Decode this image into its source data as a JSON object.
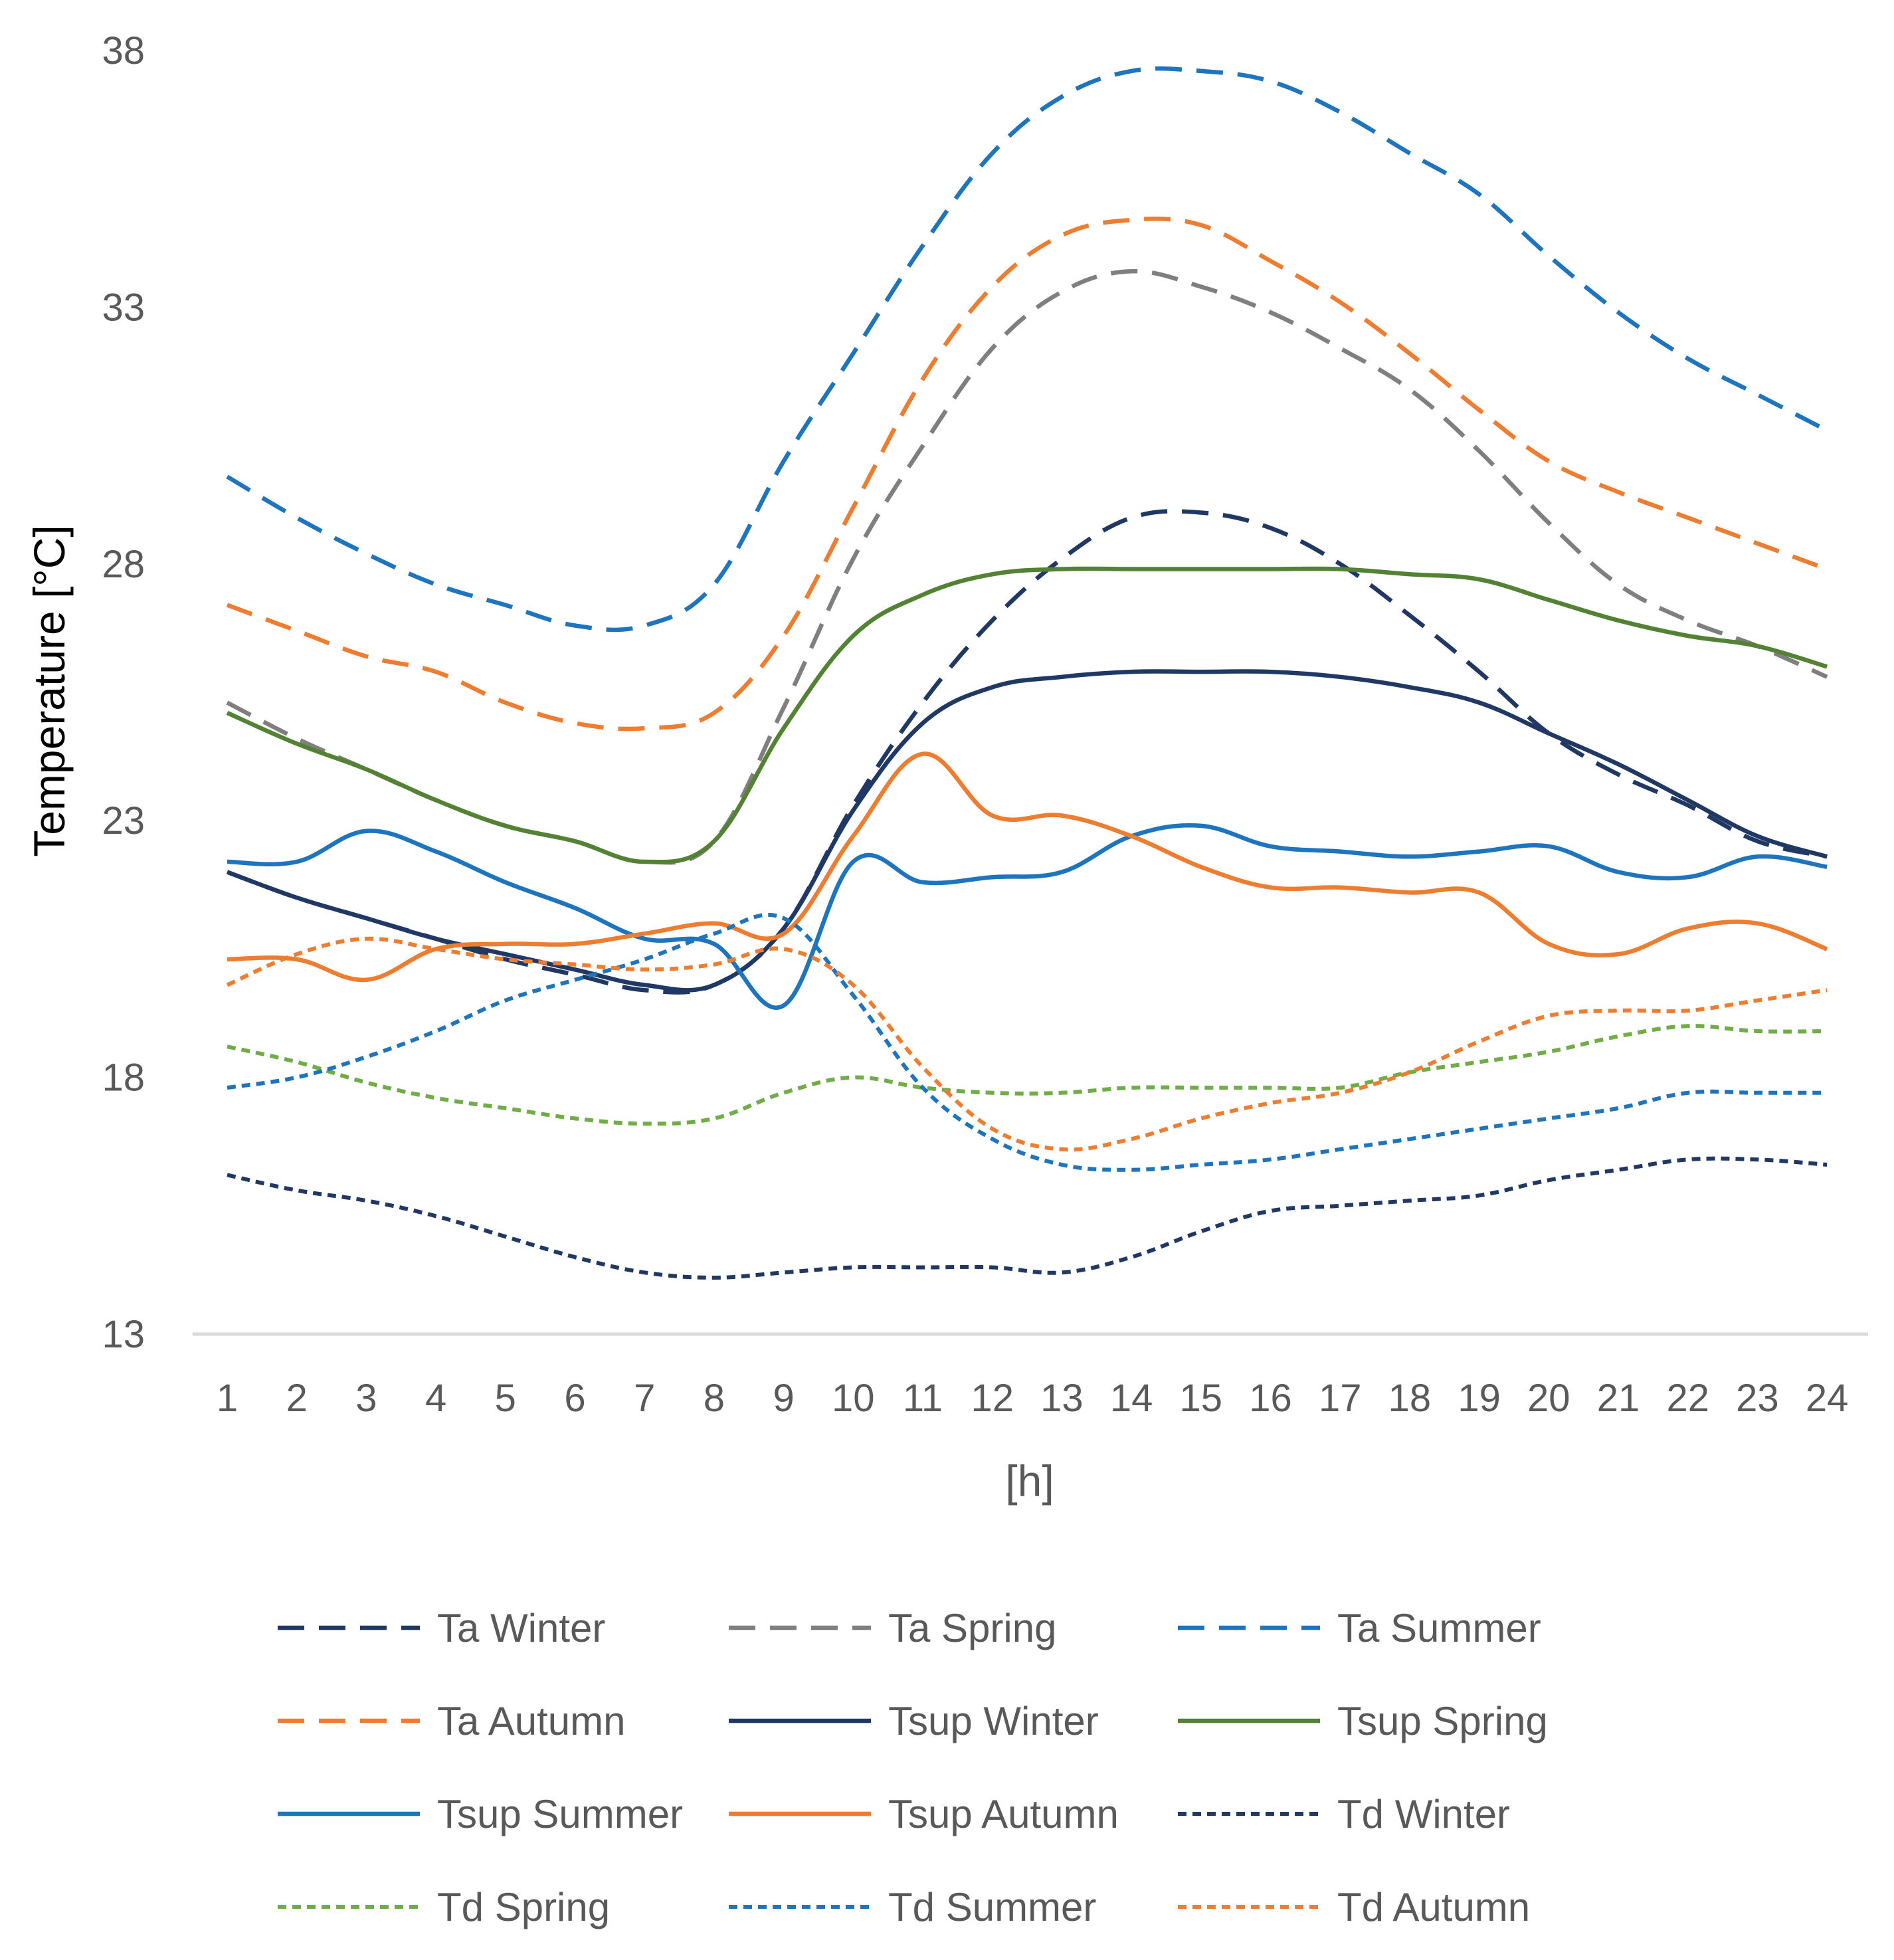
{
  "chart_data": {
    "type": "line",
    "title": "",
    "xlabel": "[h]",
    "ylabel": "Temperature [°C]",
    "x": [
      1,
      2,
      3,
      4,
      5,
      6,
      7,
      8,
      9,
      10,
      11,
      12,
      13,
      14,
      15,
      16,
      17,
      18,
      19,
      20,
      21,
      22,
      23,
      24
    ],
    "xticks": [
      "1",
      "2",
      "3",
      "4",
      "5",
      "6",
      "7",
      "8",
      "9",
      "10",
      "11",
      "12",
      "13",
      "14",
      "15",
      "16",
      "17",
      "18",
      "19",
      "20",
      "21",
      "22",
      "23",
      "24"
    ],
    "yticks": [
      "13",
      "18",
      "23",
      "28",
      "33",
      "38"
    ],
    "yticks_values": [
      13,
      18,
      23,
      28,
      33,
      38
    ],
    "ylim": [
      13,
      38
    ],
    "grid": false,
    "legend_position": "bottom",
    "series": [
      {
        "name": "Ta Winter",
        "color": "#203864",
        "style": "dash",
        "values": [
          22.0,
          21.5,
          21.1,
          20.7,
          20.3,
          20.0,
          19.7,
          19.8,
          20.9,
          23.3,
          25.3,
          26.9,
          28.1,
          28.9,
          29.0,
          28.7,
          28.0,
          27.0,
          25.9,
          24.7,
          23.9,
          23.3,
          22.6,
          22.3
        ]
      },
      {
        "name": "Ta Spring",
        "color": "#7F7F7F",
        "style": "dash",
        "values": [
          25.3,
          24.6,
          24.0,
          23.4,
          22.9,
          22.6,
          22.2,
          22.6,
          25.2,
          28.1,
          30.3,
          32.2,
          33.3,
          33.7,
          33.4,
          32.9,
          32.2,
          31.4,
          30.2,
          28.8,
          27.6,
          26.9,
          26.4,
          25.8
        ]
      },
      {
        "name": "Ta Summer",
        "color": "#1F75BD",
        "style": "dash",
        "values": [
          29.7,
          28.9,
          28.2,
          27.6,
          27.2,
          26.8,
          26.8,
          27.6,
          30.0,
          32.1,
          34.2,
          36.0,
          37.1,
          37.6,
          37.6,
          37.4,
          36.8,
          36.0,
          35.2,
          34.0,
          32.9,
          32.0,
          31.3,
          30.6
        ]
      },
      {
        "name": "Ta Autumn",
        "color": "#ED7D31",
        "style": "dash",
        "values": [
          27.2,
          26.7,
          26.2,
          25.9,
          25.3,
          24.9,
          24.8,
          25.1,
          26.6,
          29.1,
          31.6,
          33.4,
          34.4,
          34.7,
          34.6,
          33.9,
          33.1,
          32.1,
          31.0,
          30.0,
          29.4,
          28.9,
          28.4,
          27.9
        ]
      },
      {
        "name": "Tsup Winter",
        "color": "#203864",
        "style": "solid",
        "values": [
          22.0,
          21.5,
          21.1,
          20.7,
          20.4,
          20.1,
          19.8,
          19.8,
          20.9,
          23.2,
          24.9,
          25.6,
          25.8,
          25.9,
          25.9,
          25.9,
          25.8,
          25.6,
          25.3,
          24.7,
          24.1,
          23.4,
          22.7,
          22.3
        ]
      },
      {
        "name": "Tsup Spring",
        "color": "#548235",
        "style": "solid",
        "values": [
          25.1,
          24.5,
          24.0,
          23.4,
          22.9,
          22.6,
          22.2,
          22.6,
          24.8,
          26.6,
          27.4,
          27.8,
          27.9,
          27.9,
          27.9,
          27.9,
          27.9,
          27.8,
          27.7,
          27.3,
          26.9,
          26.6,
          26.4,
          26.0
        ]
      },
      {
        "name": "Tsup Summer",
        "color": "#1F75BD",
        "style": "solid",
        "values": [
          22.2,
          22.2,
          22.8,
          22.4,
          21.8,
          21.3,
          20.7,
          20.6,
          19.4,
          22.2,
          21.8,
          21.9,
          22.0,
          22.7,
          22.9,
          22.5,
          22.4,
          22.3,
          22.4,
          22.5,
          22.0,
          21.9,
          22.3,
          22.1
        ]
      },
      {
        "name": "Tsup Autumn",
        "color": "#ED7D31",
        "style": "solid",
        "values": [
          20.3,
          20.3,
          19.9,
          20.5,
          20.6,
          20.6,
          20.8,
          21.0,
          20.8,
          22.7,
          24.3,
          23.1,
          23.1,
          22.7,
          22.1,
          21.7,
          21.7,
          21.6,
          21.6,
          20.6,
          20.4,
          20.9,
          21.0,
          20.5
        ]
      },
      {
        "name": "Td Winter",
        "color": "#203864",
        "style": "dot",
        "values": [
          16.1,
          15.8,
          15.6,
          15.3,
          14.9,
          14.5,
          14.2,
          14.1,
          14.2,
          14.3,
          14.3,
          14.3,
          14.2,
          14.5,
          15.0,
          15.4,
          15.5,
          15.6,
          15.7,
          16.0,
          16.2,
          16.4,
          16.4,
          16.3
        ]
      },
      {
        "name": "Td Spring",
        "color": "#70AD47",
        "style": "dot",
        "values": [
          18.6,
          18.3,
          17.9,
          17.6,
          17.4,
          17.2,
          17.1,
          17.2,
          17.7,
          18.0,
          17.8,
          17.7,
          17.7,
          17.8,
          17.8,
          17.8,
          17.8,
          18.1,
          18.3,
          18.5,
          18.8,
          19.0,
          18.9,
          18.9
        ]
      },
      {
        "name": "Td Summer",
        "color": "#1F75BD",
        "style": "dot",
        "values": [
          17.8,
          18.0,
          18.4,
          18.9,
          19.5,
          19.9,
          20.3,
          20.8,
          21.1,
          19.6,
          17.8,
          16.8,
          16.3,
          16.2,
          16.3,
          16.4,
          16.6,
          16.8,
          17.0,
          17.2,
          17.4,
          17.7,
          17.7,
          17.7
        ]
      },
      {
        "name": "Td Autumn",
        "color": "#ED7D31",
        "style": "dot",
        "values": [
          19.8,
          20.4,
          20.7,
          20.5,
          20.3,
          20.2,
          20.1,
          20.2,
          20.5,
          19.8,
          18.2,
          17.0,
          16.6,
          16.8,
          17.2,
          17.5,
          17.7,
          18.1,
          18.7,
          19.2,
          19.3,
          19.3,
          19.5,
          19.7
        ]
      }
    ]
  }
}
